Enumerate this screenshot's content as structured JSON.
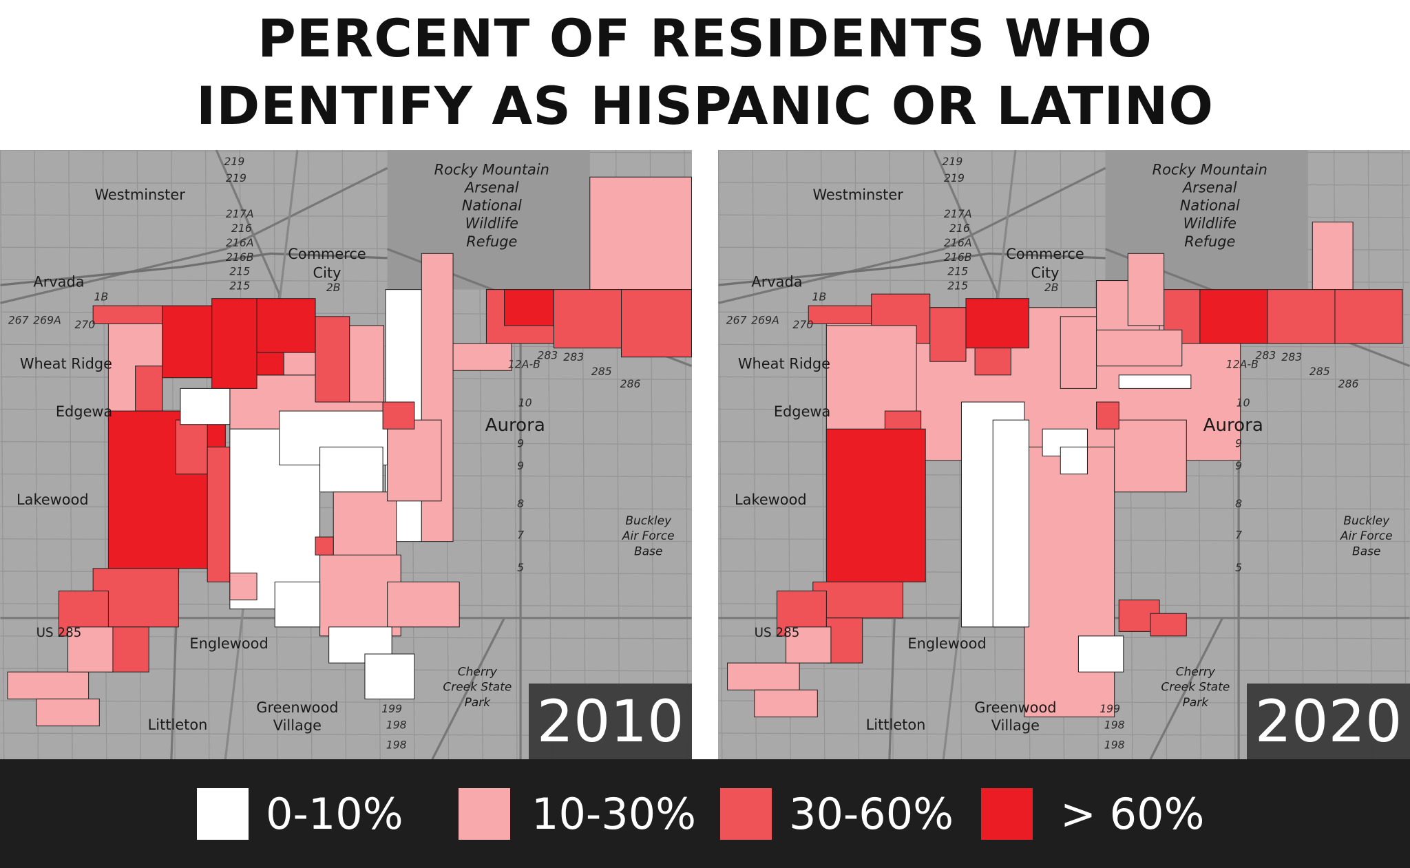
{
  "title": {
    "line1": "PERCENT OF RESIDENTS WHO",
    "line2": "IDENTIFY AS HISPANIC OR LATINO"
  },
  "maps": [
    {
      "year": "2010"
    },
    {
      "year": "2020"
    }
  ],
  "place_labels": {
    "westminster": "Westminster",
    "arvada": "Arvada",
    "wheat_ridge": "Wheat Ridge",
    "edgewater": "Edgewa",
    "lakewood": "Lakewood",
    "commerce_city_1": "Commerce",
    "commerce_city_2": "City",
    "refuge_1": "Rocky Mountain",
    "refuge_2": "Arsenal",
    "refuge_3": "National",
    "refuge_4": "Wildlife",
    "refuge_5": "Refuge",
    "aurora": "Aurora",
    "englewood": "Englewood",
    "greenwood_1": "Greenwood",
    "greenwood_2": "Village",
    "littleton": "Littleton",
    "cherry_1": "Cherry",
    "cherry_2": "Creek State",
    "cherry_3": "Park",
    "buckley_1": "Buckley",
    "buckley_2": "Air Force",
    "buckley_3": "Base",
    "us285": "US 285"
  },
  "highway_labels": [
    "219",
    "219",
    "217A",
    "216",
    "216A",
    "216B",
    "215",
    "215",
    "283",
    "283",
    "285",
    "286",
    "10",
    "9",
    "9",
    "8",
    "7",
    "5",
    "199",
    "198",
    "198",
    "267",
    "269A",
    "270",
    "1B",
    "2B",
    "12A-B"
  ],
  "legend": {
    "items": [
      {
        "label": "0-10%",
        "color": "#ffffff"
      },
      {
        "label": "10-30%",
        "color": "#f7a9ab"
      },
      {
        "label": "30-60%",
        "color": "#ef5358"
      },
      {
        "label": "> 60%",
        "color": "#ec1c24"
      }
    ]
  },
  "colors": {
    "basemap": "#a9a9a9",
    "legend_background": "#1e1e1e",
    "year_box": "#373737"
  }
}
